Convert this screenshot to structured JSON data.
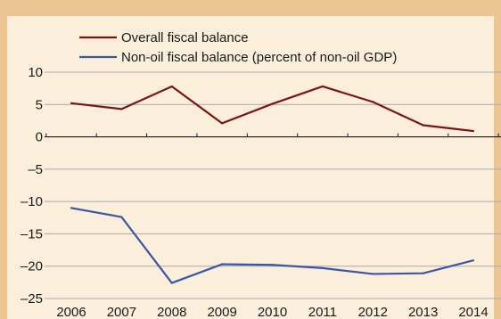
{
  "chart_data": {
    "type": "line",
    "x": [
      "2006",
      "2007",
      "2008",
      "2009",
      "2010",
      "2011",
      "2012",
      "2013",
      "2014"
    ],
    "series": [
      {
        "name": "Overall fiscal balance",
        "color": "#7b1416",
        "values": [
          5.2,
          4.3,
          7.8,
          2.1,
          5.1,
          7.8,
          5.4,
          1.8,
          0.9
        ]
      },
      {
        "name": "Non-oil fiscal balance (percent of non-oil GDP)",
        "color": "#3d55a4",
        "values": [
          -11.0,
          -12.4,
          -22.6,
          -19.7,
          -19.8,
          -20.3,
          -21.2,
          -21.1,
          -19.1
        ]
      }
    ],
    "ylim": [
      -25,
      10
    ],
    "yticks": [
      10,
      5,
      0,
      -5,
      -10,
      -15,
      -20,
      -25
    ],
    "ytick_labels": [
      "10",
      "5",
      "0",
      "–5",
      "–10",
      "–15",
      "–20",
      "–25"
    ],
    "legend_position": "top",
    "grid": true
  }
}
